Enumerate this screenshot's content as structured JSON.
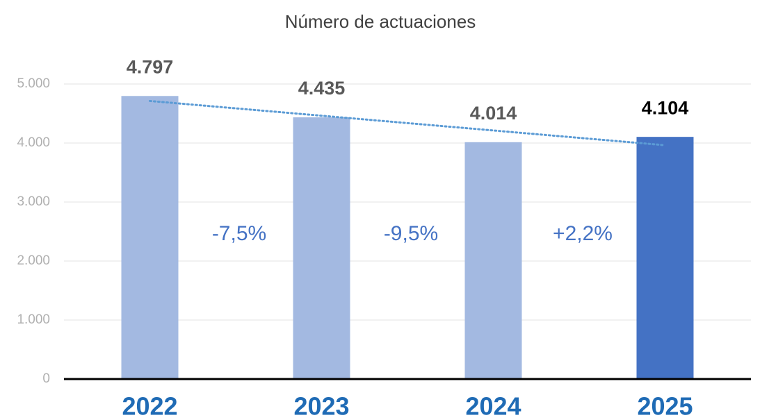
{
  "chart_data": {
    "type": "bar",
    "title": "Número de actuaciones",
    "categories": [
      "2022",
      "2023",
      "2024",
      "2025"
    ],
    "values": [
      4797,
      4435,
      4014,
      4104
    ],
    "value_labels": [
      "4.797",
      "4.435",
      "4.014",
      "4.104"
    ],
    "colors": [
      "#a3b9e1",
      "#a3b9e1",
      "#a3b9e1",
      "#4472c4"
    ],
    "value_label_colors": [
      "#595959",
      "#595959",
      "#595959",
      "#000000"
    ],
    "ylim": [
      0,
      5000
    ],
    "yticks": [
      0,
      {
        "value": 1000,
        "label": "1.000"
      },
      {
        "value": 2000,
        "label": "2.000"
      },
      {
        "value": 3000,
        "label": "3.000"
      },
      {
        "value": 4000,
        "label": "4.000"
      },
      {
        "value": 5000,
        "label": "5.000"
      }
    ],
    "grid": true,
    "trendline": {
      "type": "linear",
      "color": "#5b9bd5"
    },
    "annotations": [
      "-7,5%",
      "-9,5%",
      "+2,2%"
    ],
    "annotation_color": "#4472c4",
    "category_color": "#1f6bb5"
  }
}
